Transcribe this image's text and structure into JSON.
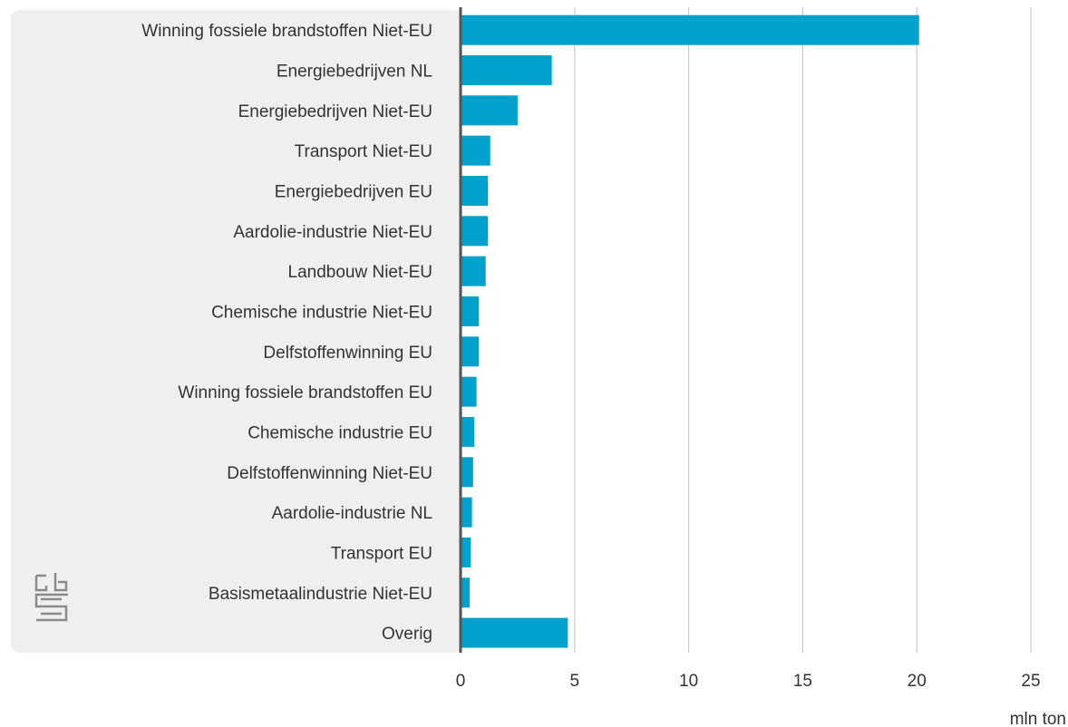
{
  "chart_data": {
    "type": "bar",
    "orientation": "horizontal",
    "categories": [
      "Winning fossiele brandstoffen Niet-EU",
      "Energiebedrijven NL",
      "Energiebedrijven Niet-EU",
      "Transport Niet-EU",
      "Energiebedrijven EU",
      "Aardolie-industrie Niet-EU",
      "Landbouw Niet-EU",
      "Chemische industrie Niet-EU",
      "Delfstoffenwinning EU",
      "Winning fossiele brandstoffen EU",
      "Chemische industrie EU",
      "Delfstoffenwinning Niet-EU",
      "Aardolie-industrie NL",
      "Transport EU",
      "Basismetaalindustrie Niet-EU",
      "Overig"
    ],
    "values": [
      20.1,
      4.0,
      2.5,
      1.3,
      1.2,
      1.2,
      1.1,
      0.8,
      0.8,
      0.7,
      0.6,
      0.55,
      0.5,
      0.45,
      0.4,
      4.7
    ],
    "xlabel": "mln ton",
    "xlim": [
      0,
      25
    ],
    "xticks": [
      0,
      5,
      10,
      15,
      20,
      25
    ],
    "grid": true,
    "bar_color": "#00a1cd",
    "label_panel_color": "#efefef",
    "gridline_color": "#cccccc",
    "axis_color": "#555555",
    "logo": "cbs-logo-icon"
  }
}
